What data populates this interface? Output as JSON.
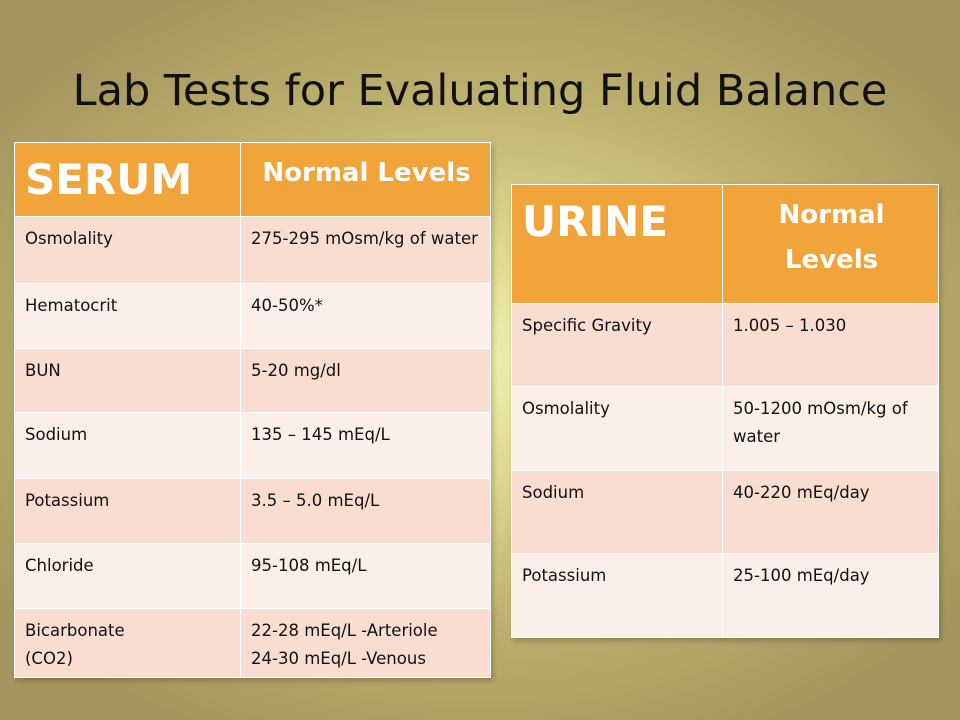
{
  "slide": {
    "title": "Lab Tests for Evaluating Fluid Balance"
  },
  "serum": {
    "header": "SERUM",
    "levels_header": "Normal Levels",
    "rows": [
      {
        "test": "Osmolality",
        "value": "275-295 mOsm/kg of water"
      },
      {
        "test": "Hematocrit",
        "value": "40-50%*"
      },
      {
        "test": "BUN",
        "value": "5-20 mg/dl"
      },
      {
        "test": "Sodium",
        "value": "135 – 145 mEq/L"
      },
      {
        "test": "Potassium",
        "value": "3.5 – 5.0 mEq/L"
      },
      {
        "test": "Chloride",
        "value": "95-108 mEq/L"
      },
      {
        "test": "Bicarbonate\n(CO2)",
        "value": "22-28 mEq/L -Arteriole\n24-30 mEq/L -Venous"
      }
    ]
  },
  "urine": {
    "header": "URINE",
    "levels_header": "Normal Levels",
    "rows": [
      {
        "test": "Specific Gravity",
        "value": "1.005 – 1.030"
      },
      {
        "test": "Osmolality",
        "value": "50-1200 mOsm/kg of water"
      },
      {
        "test": "Sodium",
        "value": "40-220 mEq/day"
      },
      {
        "test": "Potassium",
        "value": "25-100 mEq/day"
      }
    ]
  },
  "colors": {
    "header_orange": "#f0a43a",
    "row_band_dark": "#f8ddd0",
    "row_band_light": "#fcefe9",
    "text": "#111111"
  }
}
